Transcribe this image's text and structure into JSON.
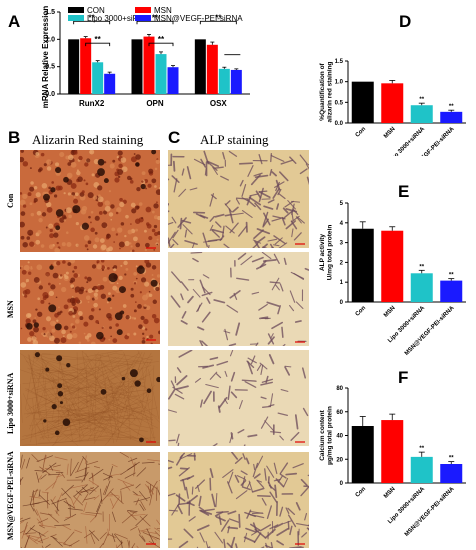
{
  "panels": {
    "a": "A",
    "b": "B",
    "c": "C",
    "d": "D",
    "e": "E",
    "f": "F"
  },
  "section_titles": {
    "alizarin": "Alizarin Red staining",
    "alp": "ALP staining"
  },
  "row_labels": [
    "Con",
    "MSN",
    "Lipo 3000+siRNA",
    "MSN@VEGF-PEI-siRNA"
  ],
  "colors": {
    "con": "#000000",
    "msn": "#ff0000",
    "lipo": "#1fc3c8",
    "msnvegf": "#1a1aff"
  },
  "chart_data": [
    {
      "panel": "A",
      "type": "bar",
      "ylabel": "mRNA Relative Expression",
      "categories": [
        "RunX2",
        "OPN",
        "OSX"
      ],
      "ylim": [
        0,
        1.5
      ],
      "yticks": [
        "0.0",
        "0.5",
        "1.0",
        "1.5"
      ],
      "legend": [
        "CON",
        "MSN",
        "Lipo 3000+siRNA",
        "MSN@VEGF-PEI-siRNA"
      ],
      "legend_position": "top",
      "series": [
        {
          "name": "CON",
          "values": [
            1.0,
            1.0,
            1.0
          ],
          "errors": [
            0.0,
            0.0,
            0.0
          ]
        },
        {
          "name": "MSN",
          "values": [
            1.02,
            1.05,
            0.9
          ],
          "errors": [
            0.03,
            0.04,
            0.05
          ]
        },
        {
          "name": "Lipo 3000+siRNA",
          "values": [
            0.58,
            0.73,
            0.46
          ],
          "errors": [
            0.03,
            0.04,
            0.03
          ]
        },
        {
          "name": "MSN@VEGF-PEI-siRNA",
          "values": [
            0.37,
            0.49,
            0.44
          ],
          "errors": [
            0.03,
            0.03,
            0.02
          ]
        }
      ],
      "significance": "**"
    },
    {
      "panel": "D",
      "type": "bar",
      "ylabel": "%Quantification of alizarin red staining",
      "categories": [
        "Con",
        "MSN",
        "Lipo 3000+siRNA",
        "MSN@VEGF-PEI-siRNA"
      ],
      "values": [
        1.0,
        0.96,
        0.43,
        0.27
      ],
      "errors": [
        0.0,
        0.07,
        0.05,
        0.04
      ],
      "ylim": [
        0,
        1.5
      ],
      "yticks": [
        "0.0",
        "0.5",
        "1.0",
        "1.5"
      ],
      "significance": [
        "",
        "",
        "**",
        "**"
      ]
    },
    {
      "panel": "E",
      "type": "bar",
      "ylabel": "ALP activity U/mg total protein",
      "categories": [
        "Con",
        "MSN",
        "Lipo 3000+siRNA",
        "MSN@VEGF-PEI-siRNA"
      ],
      "values": [
        3.7,
        3.6,
        1.45,
        1.08
      ],
      "errors": [
        0.35,
        0.2,
        0.15,
        0.1
      ],
      "ylim": [
        0,
        5
      ],
      "yticks": [
        "0",
        "1",
        "2",
        "3",
        "4",
        "5"
      ],
      "significance": [
        "",
        "",
        "**",
        "**"
      ]
    },
    {
      "panel": "F",
      "type": "bar",
      "ylabel": "Calcium content µg/mg total protein",
      "categories": [
        "Con",
        "MSN",
        "Lipo 3000+siRNA",
        "MSN@VEGF-PEI-siRNA"
      ],
      "values": [
        48,
        53,
        22,
        16
      ],
      "errors": [
        8,
        5,
        4,
        2
      ],
      "ylim": [
        0,
        80
      ],
      "yticks": [
        "0",
        "20",
        "40",
        "60",
        "80"
      ],
      "significance": [
        "",
        "",
        "**",
        "**"
      ]
    }
  ]
}
